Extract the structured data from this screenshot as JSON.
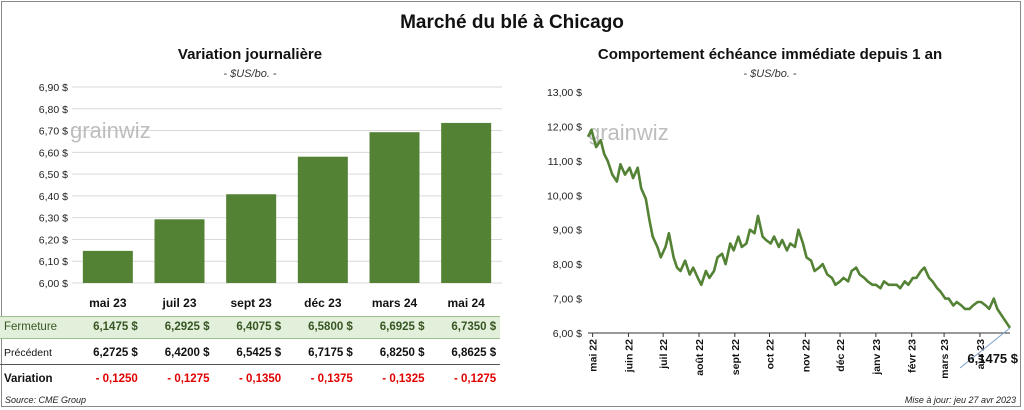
{
  "title": "Marché du blé à Chicago",
  "left": {
    "title": "Variation journalière",
    "unit": "- $US/bo. -",
    "watermark": "grainwiz",
    "row_labels": {
      "close": "Fermeture",
      "previous": "Précédent",
      "change": "Variation"
    }
  },
  "right": {
    "title": "Comportement échéance immédiate depuis 1 an",
    "unit": "- $US/bo. -",
    "watermark": "grainwiz",
    "last_value_label": "6,1475 $"
  },
  "footer": {
    "source": "Source: CME Group",
    "updated": "Mise à jour: jeu 27 avr 2023"
  },
  "colors": {
    "bar": "#548235",
    "line": "#548235",
    "highlight_row": "#e2efda",
    "negative": "#e00000"
  },
  "chart_data": [
    {
      "type": "bar",
      "categories": [
        "mai 23",
        "juil 23",
        "sept 23",
        "déc 23",
        "mars 24",
        "mai 24"
      ],
      "values": [
        6.1475,
        6.2925,
        6.4075,
        6.58,
        6.6925,
        6.735
      ],
      "ylim": [
        6.0,
        6.9
      ],
      "yticks": [
        "6,00 $",
        "6,10 $",
        "6,20 $",
        "6,30 $",
        "6,40 $",
        "6,50 $",
        "6,60 $",
        "6,70 $",
        "6,80 $",
        "6,90 $"
      ],
      "table": {
        "close": [
          "6,1475  $",
          "6,2925  $",
          "6,4075  $",
          "6,5800  $",
          "6,6925  $",
          "6,7350  $"
        ],
        "previous": [
          "6,2725  $",
          "6,4200  $",
          "6,5425  $",
          "6,7175  $",
          "6,8250  $",
          "6,8625  $"
        ],
        "change": [
          "- 0,1250",
          "- 0,1275",
          "- 0,1350",
          "- 0,1375",
          "- 0,1325",
          "- 0,1275"
        ]
      }
    },
    {
      "type": "line",
      "ylim": [
        6.0,
        13.0
      ],
      "yticks": [
        "6,00 $",
        "7,00 $",
        "8,00 $",
        "9,00 $",
        "10,00 $",
        "11,00 $",
        "12,00 $",
        "13,00 $"
      ],
      "xticks": [
        "mai 22",
        "juin 22",
        "juil 22",
        "août 22",
        "sept 22",
        "oct 22",
        "nov 22",
        "déc 22",
        "janv 23",
        "févr 23",
        "mars 23",
        "avr 23"
      ],
      "x": [
        "2022-04-27",
        "2022-04-30",
        "2022-05-04",
        "2022-05-08",
        "2022-05-11",
        "2022-05-14",
        "2022-05-18",
        "2022-05-22",
        "2022-05-25",
        "2022-05-29",
        "2022-06-02",
        "2022-06-05",
        "2022-06-09",
        "2022-06-12",
        "2022-06-16",
        "2022-06-19",
        "2022-06-22",
        "2022-06-26",
        "2022-06-29",
        "2022-07-03",
        "2022-07-06",
        "2022-07-10",
        "2022-07-13",
        "2022-07-16",
        "2022-07-20",
        "2022-07-24",
        "2022-07-27",
        "2022-07-31",
        "2022-08-03",
        "2022-08-07",
        "2022-08-10",
        "2022-08-14",
        "2022-08-17",
        "2022-08-21",
        "2022-08-24",
        "2022-08-28",
        "2022-08-31",
        "2022-09-04",
        "2022-09-07",
        "2022-09-11",
        "2022-09-14",
        "2022-09-18",
        "2022-09-21",
        "2022-09-25",
        "2022-09-28",
        "2022-10-02",
        "2022-10-05",
        "2022-10-09",
        "2022-10-12",
        "2022-10-16",
        "2022-10-19",
        "2022-10-23",
        "2022-10-26",
        "2022-10-30",
        "2022-11-02",
        "2022-11-06",
        "2022-11-09",
        "2022-11-13",
        "2022-11-16",
        "2022-11-20",
        "2022-11-24",
        "2022-11-27",
        "2022-12-01",
        "2022-12-04",
        "2022-12-08",
        "2022-12-11",
        "2022-12-15",
        "2022-12-18",
        "2022-12-22",
        "2022-12-25",
        "2022-12-29",
        "2023-01-01",
        "2023-01-05",
        "2023-01-08",
        "2023-01-12",
        "2023-01-15",
        "2023-01-19",
        "2023-01-22",
        "2023-01-26",
        "2023-01-29",
        "2023-02-02",
        "2023-02-05",
        "2023-02-09",
        "2023-02-12",
        "2023-02-16",
        "2023-02-19",
        "2023-02-23",
        "2023-02-26",
        "2023-03-02",
        "2023-03-05",
        "2023-03-09",
        "2023-03-12",
        "2023-03-16",
        "2023-03-19",
        "2023-03-23",
        "2023-03-26",
        "2023-03-30",
        "2023-04-02",
        "2023-04-06",
        "2023-04-09",
        "2023-04-13",
        "2023-04-16",
        "2023-04-20",
        "2023-04-24",
        "2023-04-27"
      ],
      "y": [
        11.7,
        11.9,
        11.4,
        11.6,
        11.2,
        11.0,
        10.6,
        10.4,
        10.9,
        10.6,
        10.8,
        10.5,
        10.8,
        10.2,
        9.9,
        9.3,
        8.8,
        8.5,
        8.2,
        8.5,
        8.9,
        8.2,
        7.9,
        7.8,
        8.1,
        7.7,
        7.9,
        7.6,
        7.4,
        7.8,
        7.6,
        7.8,
        8.2,
        8.3,
        8.0,
        8.6,
        8.4,
        8.8,
        8.5,
        8.6,
        9.0,
        8.9,
        9.4,
        8.8,
        8.7,
        8.6,
        8.8,
        8.5,
        8.7,
        8.4,
        8.6,
        8.5,
        9.0,
        8.6,
        8.2,
        8.1,
        7.8,
        7.9,
        8.0,
        7.7,
        7.6,
        7.4,
        7.5,
        7.6,
        7.5,
        7.8,
        7.9,
        7.7,
        7.6,
        7.5,
        7.4,
        7.4,
        7.3,
        7.5,
        7.4,
        7.4,
        7.4,
        7.3,
        7.5,
        7.4,
        7.6,
        7.6,
        7.8,
        7.9,
        7.6,
        7.5,
        7.3,
        7.2,
        7.0,
        7.0,
        6.8,
        6.9,
        6.8,
        6.7,
        6.7,
        6.8,
        6.9,
        6.9,
        6.8,
        6.7,
        7.0,
        6.7,
        6.5,
        6.3,
        6.1475
      ]
    }
  ]
}
